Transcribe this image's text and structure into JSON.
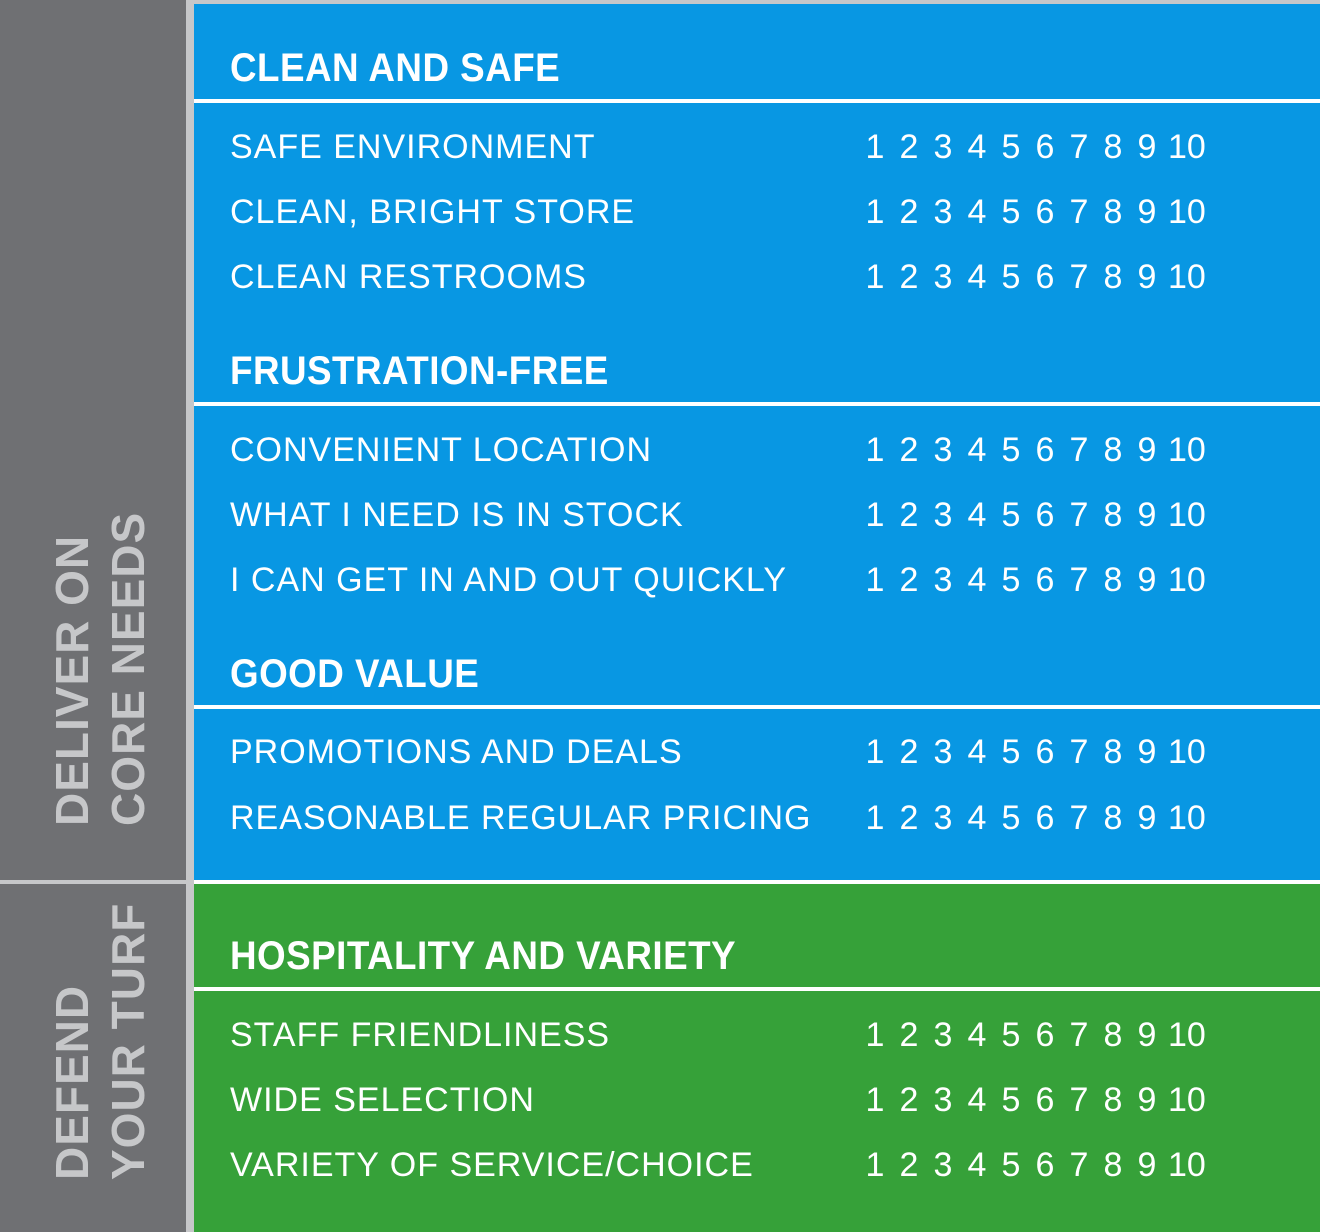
{
  "sidebar": {
    "core_label_line1": "DELIVER ON",
    "core_label_line2": "CORE NEEDS",
    "turf_label_line1": "DEFEND",
    "turf_label_line2": "YOUR TURF"
  },
  "colors": {
    "blue_panel": "#0897e3",
    "green_panel": "#36a139",
    "sidebar_gray": "#6f7073",
    "divider_gray": "#c6c7c9"
  },
  "scale_values": [
    "1",
    "2",
    "3",
    "4",
    "5",
    "6",
    "7",
    "8",
    "9",
    "10"
  ],
  "sections": [
    {
      "title": "CLEAN AND SAFE",
      "items": [
        "SAFE ENVIRONMENT",
        "CLEAN, BRIGHT STORE",
        "CLEAN RESTROOMS"
      ]
    },
    {
      "title": "FRUSTRATION-FREE",
      "items": [
        "CONVENIENT LOCATION",
        "WHAT I NEED IS IN STOCK",
        "I CAN GET IN AND OUT QUICKLY"
      ]
    },
    {
      "title": "GOOD VALUE",
      "items": [
        "PROMOTIONS AND DEALS",
        "REASONABLE REGULAR PRICING"
      ]
    },
    {
      "title": "HOSPITALITY AND VARIETY",
      "items": [
        "STAFF FRIENDLINESS",
        "WIDE SELECTION",
        "VARIETY OF SERVICE/CHOICE"
      ]
    }
  ]
}
